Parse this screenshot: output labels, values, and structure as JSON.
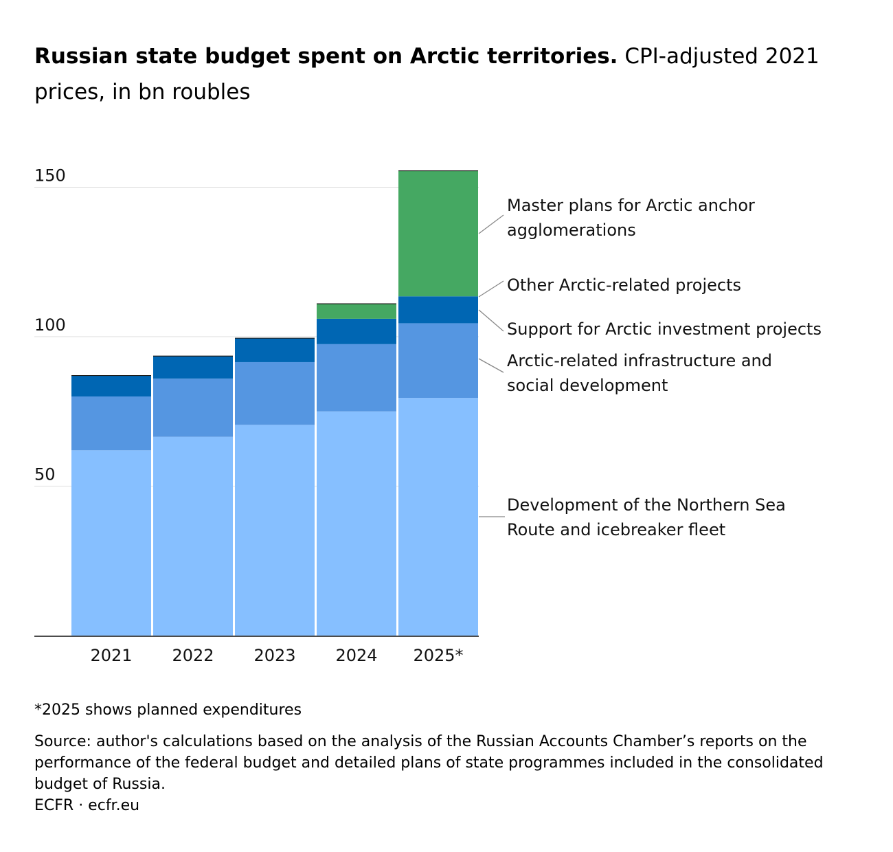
{
  "title": {
    "bold": "Russian state budget spent on Arctic territories.",
    "subtitle": "CPI-adjusted 2021 prices, in bn roubles"
  },
  "chart_data": {
    "type": "bar",
    "stacked": true,
    "categories": [
      "2021",
      "2022",
      "2023",
      "2024",
      "2025*"
    ],
    "series": [
      {
        "name": "Development of the Northern Sea Route and icebreaker fleet",
        "color": "#86bfff",
        "values": [
          62,
          66.5,
          70.5,
          75,
          79.5
        ]
      },
      {
        "name": "Arctic-related infrastructure and social development",
        "color": "#5596e1",
        "values": [
          18,
          19.5,
          21,
          22.5,
          25
        ]
      },
      {
        "name": "Support for Arctic investment projects",
        "color": "#0066b3",
        "values": [
          7,
          7.5,
          8,
          8.5,
          9
        ]
      },
      {
        "name": "Other Arctic-related projects",
        "color": "#1d1d1b",
        "values": [
          0,
          0,
          0,
          0,
          0
        ]
      },
      {
        "name": "Master plans for Arctic anchor agglomerations",
        "color": "#45a862",
        "values": [
          0,
          0,
          0,
          5,
          42
        ]
      }
    ],
    "yticks": [
      50,
      100,
      150
    ],
    "ylim": [
      0,
      155
    ],
    "grid": true,
    "legend": "right, direct labels"
  },
  "footer": {
    "note": "*2025 shows planned expenditures",
    "source": "Source: author's calculations based on the analysis of the Russian Accounts Chamber’s reports on the performance of the federal budget and detailed plans of state programmes included in the consolidated budget of Russia.",
    "credit": "ECFR · ecfr.eu"
  }
}
